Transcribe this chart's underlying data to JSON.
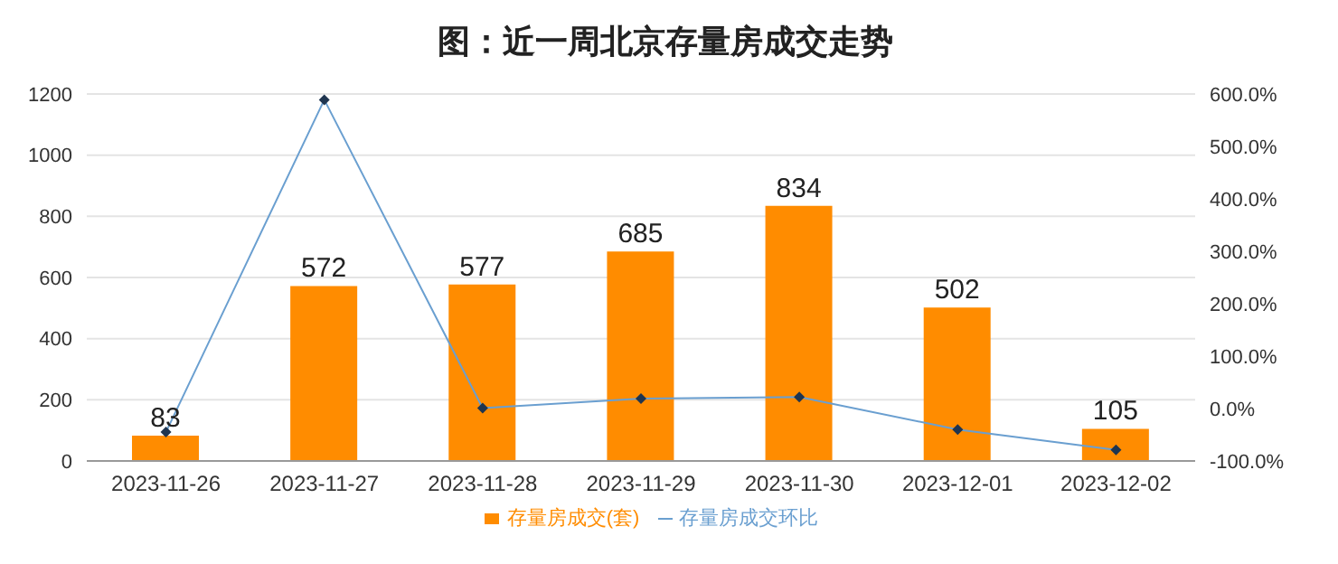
{
  "chart_data": {
    "type": "bar",
    "title": "图：近一周北京存量房成交走势",
    "categories": [
      "2023-11-26",
      "2023-11-27",
      "2023-11-28",
      "2023-11-29",
      "2023-11-30",
      "2023-12-01",
      "2023-12-02"
    ],
    "series": [
      {
        "name": "存量房成交(套)",
        "color": "#ff8c00",
        "values": [
          83,
          572,
          577,
          685,
          834,
          502,
          105
        ],
        "value_labels": [
          "83",
          "572",
          "577",
          "685",
          "834",
          "502",
          "105"
        ]
      },
      {
        "name": "存量房成交环比",
        "type": "line",
        "axis": "y2",
        "color": "#6a9fd0",
        "values": [
          -45,
          589,
          1,
          19,
          22,
          -40,
          -79
        ]
      }
    ],
    "ylim": [
      0,
      1200
    ],
    "yticks": [
      0,
      200,
      400,
      600,
      800,
      1000,
      1200
    ],
    "y2lim": [
      -100,
      600
    ],
    "y2ticks": [
      {
        "value": -100,
        "label": "-100.0%"
      },
      {
        "value": 0,
        "label": "0.0%"
      },
      {
        "value": 100,
        "label": "100.0%"
      },
      {
        "value": 200,
        "label": "200.0%"
      },
      {
        "value": 300,
        "label": "300.0%"
      },
      {
        "value": 400,
        "label": "400.0%"
      },
      {
        "value": 500,
        "label": "500.0%"
      },
      {
        "value": 600,
        "label": "600.0%"
      }
    ],
    "grid": "y",
    "legend": "bottom",
    "marker": "diamond",
    "line_style": "solid"
  }
}
